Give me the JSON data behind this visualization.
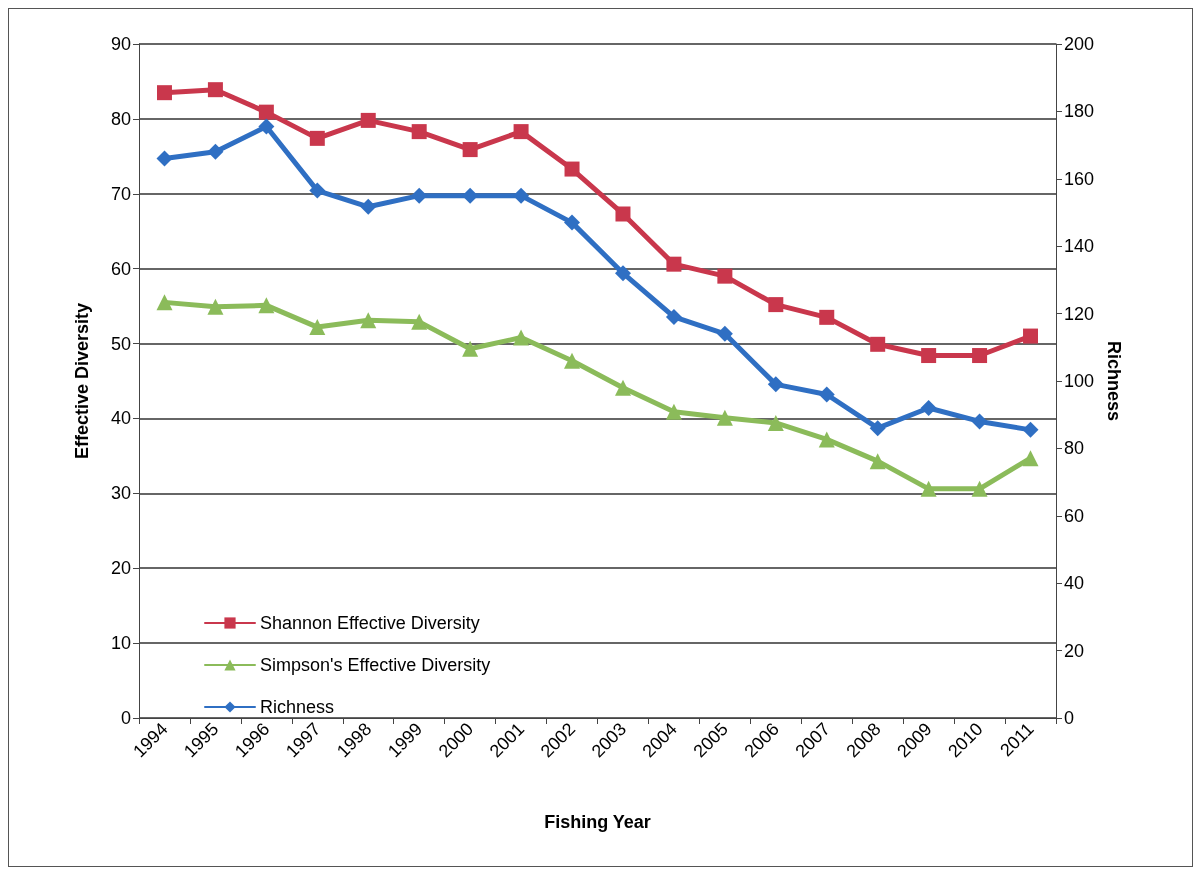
{
  "chart_data": {
    "type": "line",
    "xlabel": "Fishing Year",
    "ylabel": "Effective Diversity",
    "y2label": "Richness",
    "categories": [
      "1994",
      "1995",
      "1996",
      "1997",
      "1998",
      "1999",
      "2000",
      "2001",
      "2002",
      "2003",
      "2004",
      "2005",
      "2006",
      "2007",
      "2008",
      "2009",
      "2010",
      "2011"
    ],
    "series": [
      {
        "name": "Shannon Effective Diversity",
        "color": "#c9374c",
        "marker": "square",
        "values": [
          83.5,
          83.9,
          80.9,
          77.4,
          79.8,
          78.3,
          75.9,
          78.3,
          73.3,
          67.3,
          60.6,
          59.0,
          55.2,
          53.5,
          49.9,
          48.4,
          48.4,
          51.0
        ]
      },
      {
        "name": "Simpson's Effective Diversity",
        "color": "#8bbb5a",
        "marker": "triangle",
        "values": [
          55.5,
          54.9,
          55.1,
          52.2,
          53.1,
          52.9,
          49.3,
          50.8,
          47.7,
          44.1,
          40.9,
          40.1,
          39.4,
          37.2,
          34.3,
          30.6,
          30.6,
          34.7
        ]
      },
      {
        "name": "Richness",
        "color": "#2f6fc3",
        "marker": "diamond",
        "axis": "y2",
        "values": [
          166,
          168,
          175.5,
          156.5,
          151.7,
          155,
          155,
          155,
          147,
          132,
          119,
          114,
          99,
          96,
          86,
          92,
          88,
          85.5
        ]
      }
    ],
    "ylim": [
      0,
      90
    ],
    "yticks": [
      0,
      10,
      20,
      30,
      40,
      50,
      60,
      70,
      80,
      90
    ],
    "y2lim": [
      0,
      200
    ],
    "y2ticks": [
      0,
      20,
      40,
      60,
      80,
      100,
      120,
      140,
      160,
      180,
      200
    ],
    "grid": "y",
    "legend": "bottom left",
    "line_style": "solid"
  }
}
